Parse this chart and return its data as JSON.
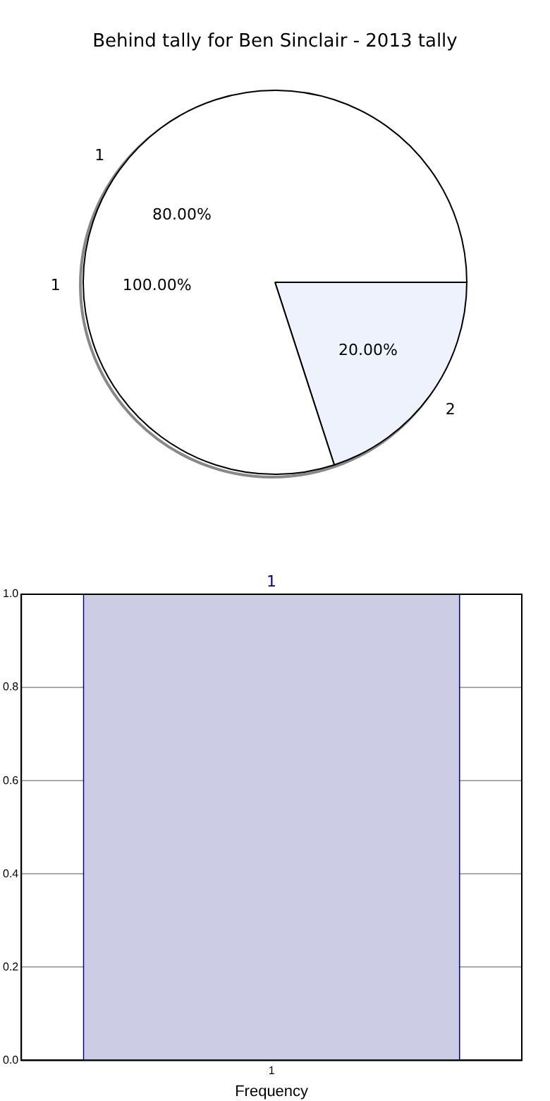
{
  "chart_data": [
    {
      "type": "pie",
      "title": "Behind tally for Ben Sinclair - 2013 tally",
      "categories": [
        "1"
      ],
      "values": [
        100
      ],
      "colors": [
        "#ffffff"
      ],
      "value_labels": [
        "100.00%"
      ]
    },
    {
      "type": "pie",
      "categories": [
        "1",
        "2"
      ],
      "values": [
        80,
        20
      ],
      "colors": [
        "#ffffff",
        "#eef2fc"
      ],
      "value_labels": [
        "80.00%",
        "20.00%"
      ]
    },
    {
      "type": "bar",
      "categories": [
        "1"
      ],
      "values": [
        1
      ],
      "color": "#ccccE4",
      "xlabel": "Frequency",
      "ylim": [
        0,
        1
      ],
      "yticks": [
        {
          "value": 0,
          "label": "0.0"
        },
        {
          "value": 0.2,
          "label": "0.2"
        },
        {
          "value": 0.4,
          "label": "0.4"
        },
        {
          "value": 0.6,
          "label": "0.6"
        },
        {
          "value": 0.8,
          "label": "0.8"
        },
        {
          "value": 1,
          "label": "1.0"
        }
      ],
      "grid": true,
      "data_labels": true
    }
  ]
}
